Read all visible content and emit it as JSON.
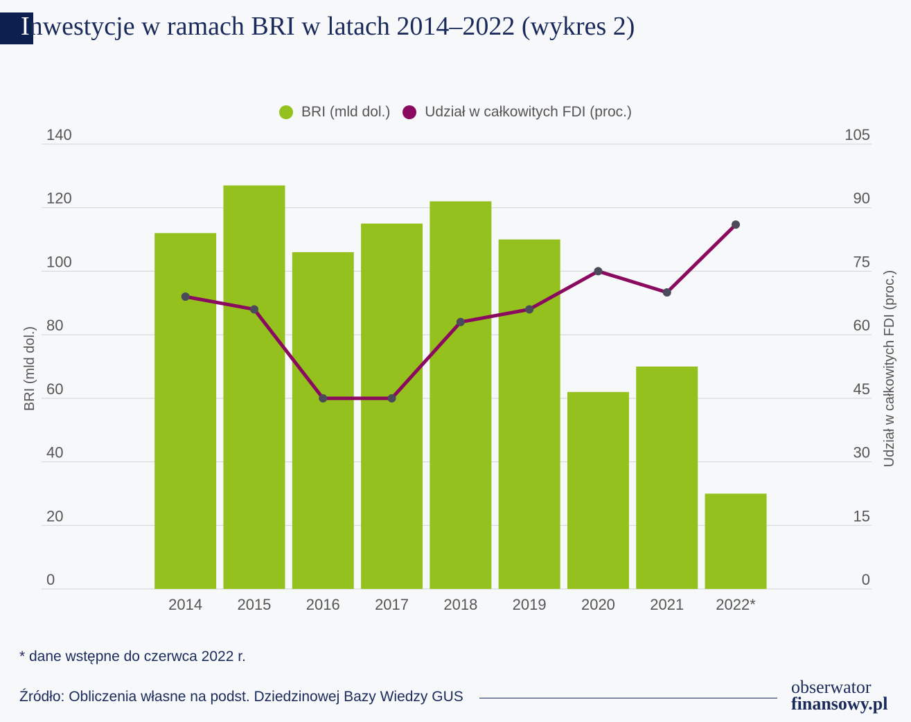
{
  "title": "Inwestycje w ramach BRI w latach 2014–2022 (wykres 2)",
  "title_first_letter": "I",
  "title_rest": "nwestycje w ramach BRI w latach 2014–2022 (wykres 2)",
  "legend": {
    "bri": "BRI (mld dol.)",
    "fdi": "Udział w całkowitych FDI (proc.)"
  },
  "colors": {
    "bar": "#95c11f",
    "line": "#8a0a5f",
    "marker": "#4a4a5a",
    "grid": "#cfd3d8",
    "title_block": "#0d1f4e"
  },
  "chart_data": {
    "type": "bar",
    "categories": [
      "2014",
      "2015",
      "2016",
      "2017",
      "2018",
      "2019",
      "2020",
      "2021",
      "2022*"
    ],
    "series": [
      {
        "name": "BRI (mld dol.)",
        "type": "bar",
        "axis": "left",
        "values": [
          112,
          127,
          106,
          115,
          122,
          110,
          62,
          70,
          30
        ]
      },
      {
        "name": "Udział w całkowitych FDI (proc.)",
        "type": "line",
        "axis": "right",
        "values": [
          69,
          66,
          45,
          45,
          63,
          66,
          75,
          70,
          86
        ]
      }
    ],
    "ylabel_left": "BRI (mld dol.)",
    "ylabel_right": "Udział w całkowitych FDI (proc.)",
    "ylim_left": [
      0,
      140
    ],
    "ylim_right": [
      0,
      105
    ],
    "yticks_left": [
      "0",
      "20",
      "40",
      "60",
      "80",
      "100",
      "120",
      "140"
    ],
    "yticks_right": [
      "0",
      "15",
      "30",
      "45",
      "60",
      "75",
      "90",
      "105"
    ],
    "grid": true,
    "legend_position": "top-center"
  },
  "footnote": "* dane wstępne do czerwca 2022 r.",
  "source": "Źródło: Obliczenia własne na podst. Dziedzinowej Bazy Wiedzy GUS",
  "logo": {
    "top": "obserwator",
    "bottom": "finansowy.pl"
  }
}
